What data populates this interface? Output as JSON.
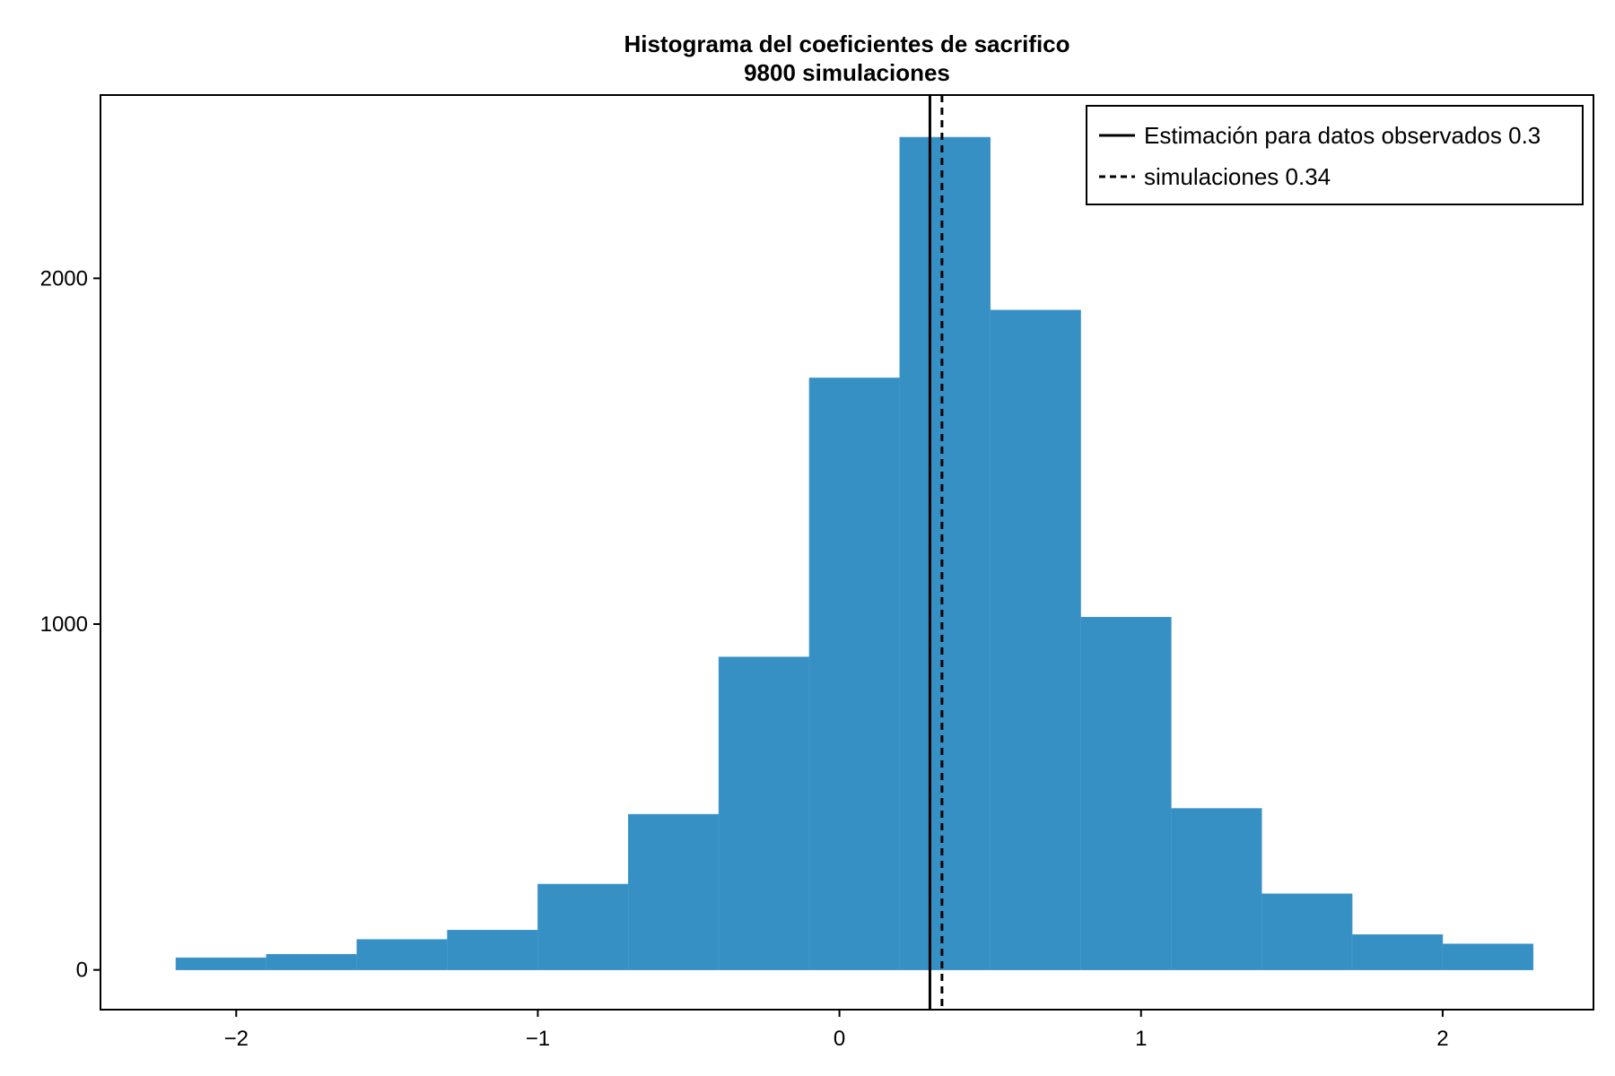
{
  "chart_data": {
    "type": "histogram",
    "title": "Histograma del coeficientes de sacrifico",
    "subtitle": "9800 simulaciones",
    "xlabel": "",
    "ylabel": "",
    "xlim": [
      -2.45,
      2.5
    ],
    "ylim": [
      -115,
      2530
    ],
    "xticks": [
      -2,
      -1,
      0,
      1,
      2
    ],
    "xtick_labels": [
      "−2",
      "−1",
      "0",
      "1",
      "2"
    ],
    "yticks": [
      0,
      1000,
      2000
    ],
    "ytick_labels": [
      "0",
      "1000",
      "2000"
    ],
    "grid": false,
    "bar_color": "#3690c4",
    "bins": [
      {
        "x0": -2.2,
        "x1": -1.9,
        "count": 35
      },
      {
        "x0": -1.9,
        "x1": -1.6,
        "count": 45
      },
      {
        "x0": -1.6,
        "x1": -1.3,
        "count": 88
      },
      {
        "x0": -1.3,
        "x1": -1.0,
        "count": 115
      },
      {
        "x0": -1.0,
        "x1": -0.7,
        "count": 248
      },
      {
        "x0": -0.7,
        "x1": -0.4,
        "count": 450
      },
      {
        "x0": -0.4,
        "x1": -0.1,
        "count": 905
      },
      {
        "x0": -0.1,
        "x1": 0.2,
        "count": 1712
      },
      {
        "x0": 0.2,
        "x1": 0.5,
        "count": 2408
      },
      {
        "x0": 0.5,
        "x1": 0.8,
        "count": 1908
      },
      {
        "x0": 0.8,
        "x1": 1.1,
        "count": 1020
      },
      {
        "x0": 1.1,
        "x1": 1.4,
        "count": 467
      },
      {
        "x0": 1.4,
        "x1": 1.7,
        "count": 220
      },
      {
        "x0": 1.7,
        "x1": 2.0,
        "count": 102
      },
      {
        "x0": 2.0,
        "x1": 2.3,
        "count": 75
      }
    ],
    "vlines": [
      {
        "x": 0.3,
        "style": "solid",
        "color": "#000000",
        "label": "Estimación para datos observados 0.3"
      },
      {
        "x": 0.34,
        "style": "dashed",
        "color": "#000000",
        "label": "simulaciones 0.34"
      }
    ],
    "legend_position": "top-right"
  }
}
